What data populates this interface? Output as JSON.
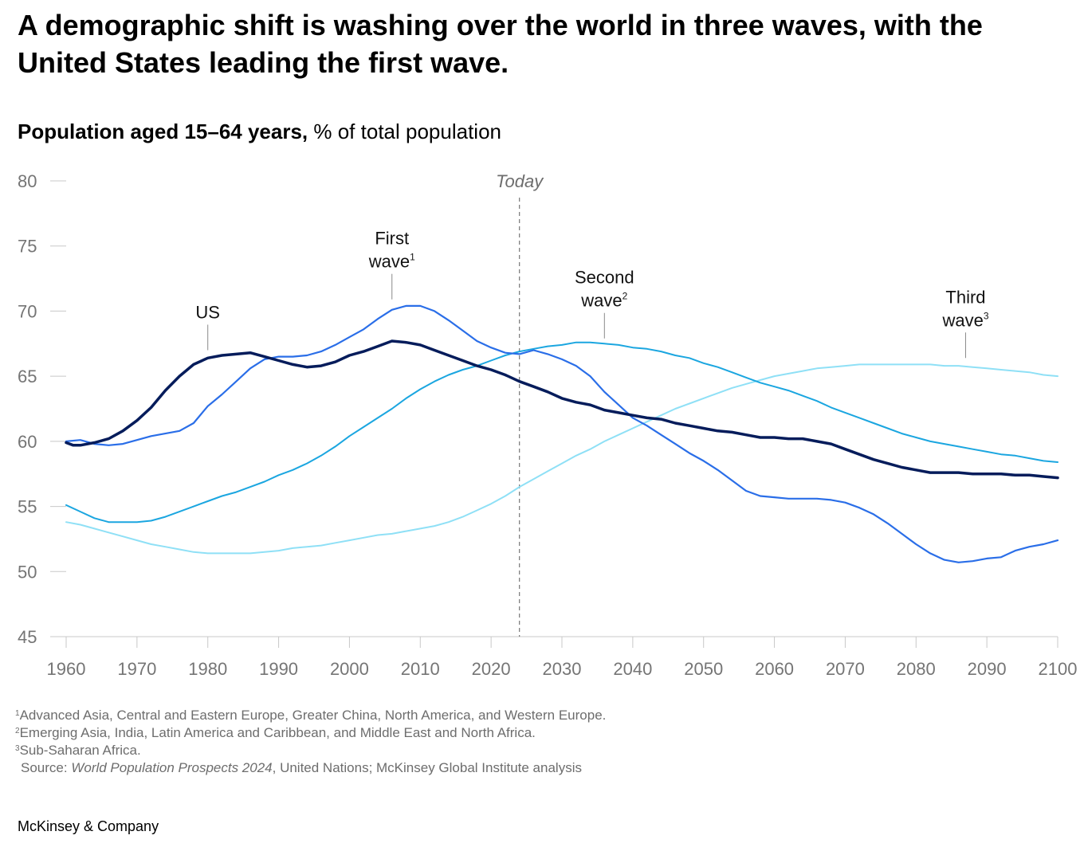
{
  "headline": "A demographic shift is washing over the world in three waves, with the United States leading the first wave.",
  "subtitle": {
    "bold": "Population aged 15–64 years,",
    "rest": " % of total population"
  },
  "footnotes": [
    {
      "sup": "1",
      "text": "Advanced Asia, Central and Eastern Europe, Greater China, North America, and Western Europe."
    },
    {
      "sup": "2",
      "text": "Emerging Asia, India, Latin America and Caribbean, and Middle East and North Africa."
    },
    {
      "sup": "3",
      "text": "Sub-Saharan Africa."
    }
  ],
  "source": {
    "prefix": "Source: ",
    "italic": "World Population Prospects 2024",
    "suffix": ", United Nations; McKinsey Global Institute analysis"
  },
  "brand": "McKinsey & Company",
  "chart_data": {
    "type": "line",
    "title": "Population aged 15–64 years, % of total population",
    "xlabel": "",
    "ylabel": "",
    "xlim": [
      1960,
      2100
    ],
    "ylim": [
      45,
      80
    ],
    "x_ticks": [
      1960,
      1970,
      1980,
      1990,
      2000,
      2010,
      2020,
      2030,
      2040,
      2050,
      2060,
      2070,
      2080,
      2090,
      2100
    ],
    "y_ticks": [
      45,
      50,
      55,
      60,
      65,
      70,
      75,
      80
    ],
    "grid": false,
    "today_marker": {
      "x": 2024,
      "label": "Today"
    },
    "series": [
      {
        "name": "US",
        "color": "#051c5b",
        "line_width": 3.5,
        "points": [
          [
            1960,
            59.9
          ],
          [
            1961,
            59.7
          ],
          [
            1962,
            59.7
          ],
          [
            1964,
            59.9
          ],
          [
            1966,
            60.2
          ],
          [
            1968,
            60.8
          ],
          [
            1970,
            61.6
          ],
          [
            1972,
            62.6
          ],
          [
            1974,
            63.9
          ],
          [
            1976,
            65.0
          ],
          [
            1978,
            65.9
          ],
          [
            1980,
            66.4
          ],
          [
            1982,
            66.6
          ],
          [
            1984,
            66.7
          ],
          [
            1986,
            66.8
          ],
          [
            1988,
            66.5
          ],
          [
            1990,
            66.2
          ],
          [
            1992,
            65.9
          ],
          [
            1994,
            65.7
          ],
          [
            1996,
            65.8
          ],
          [
            1998,
            66.1
          ],
          [
            2000,
            66.6
          ],
          [
            2002,
            66.9
          ],
          [
            2004,
            67.3
          ],
          [
            2006,
            67.7
          ],
          [
            2008,
            67.6
          ],
          [
            2010,
            67.4
          ],
          [
            2012,
            67.0
          ],
          [
            2014,
            66.6
          ],
          [
            2016,
            66.2
          ],
          [
            2018,
            65.8
          ],
          [
            2020,
            65.5
          ],
          [
            2022,
            65.1
          ],
          [
            2024,
            64.6
          ],
          [
            2026,
            64.2
          ],
          [
            2028,
            63.8
          ],
          [
            2030,
            63.3
          ],
          [
            2032,
            63.0
          ],
          [
            2034,
            62.8
          ],
          [
            2036,
            62.4
          ],
          [
            2038,
            62.2
          ],
          [
            2040,
            62.0
          ],
          [
            2042,
            61.8
          ],
          [
            2044,
            61.7
          ],
          [
            2046,
            61.4
          ],
          [
            2048,
            61.2
          ],
          [
            2050,
            61.0
          ],
          [
            2052,
            60.8
          ],
          [
            2054,
            60.7
          ],
          [
            2056,
            60.5
          ],
          [
            2058,
            60.3
          ],
          [
            2060,
            60.3
          ],
          [
            2062,
            60.2
          ],
          [
            2064,
            60.2
          ],
          [
            2066,
            60.0
          ],
          [
            2068,
            59.8
          ],
          [
            2070,
            59.4
          ],
          [
            2072,
            59.0
          ],
          [
            2074,
            58.6
          ],
          [
            2076,
            58.3
          ],
          [
            2078,
            58.0
          ],
          [
            2080,
            57.8
          ],
          [
            2082,
            57.6
          ],
          [
            2084,
            57.6
          ],
          [
            2086,
            57.6
          ],
          [
            2088,
            57.5
          ],
          [
            2090,
            57.5
          ],
          [
            2092,
            57.5
          ],
          [
            2094,
            57.4
          ],
          [
            2096,
            57.4
          ],
          [
            2098,
            57.3
          ],
          [
            2100,
            57.2
          ]
        ]
      },
      {
        "name": "First wave",
        "annotation": "First wave",
        "footnote": "1",
        "color": "#2a6ee8",
        "line_width": 2.2,
        "points": [
          [
            1960,
            60.0
          ],
          [
            1962,
            60.1
          ],
          [
            1964,
            59.8
          ],
          [
            1966,
            59.7
          ],
          [
            1968,
            59.8
          ],
          [
            1970,
            60.1
          ],
          [
            1972,
            60.4
          ],
          [
            1974,
            60.6
          ],
          [
            1976,
            60.8
          ],
          [
            1978,
            61.4
          ],
          [
            1980,
            62.7
          ],
          [
            1982,
            63.6
          ],
          [
            1984,
            64.6
          ],
          [
            1986,
            65.6
          ],
          [
            1988,
            66.3
          ],
          [
            1990,
            66.5
          ],
          [
            1992,
            66.5
          ],
          [
            1994,
            66.6
          ],
          [
            1996,
            66.9
          ],
          [
            1998,
            67.4
          ],
          [
            2000,
            68.0
          ],
          [
            2002,
            68.6
          ],
          [
            2004,
            69.4
          ],
          [
            2006,
            70.1
          ],
          [
            2008,
            70.4
          ],
          [
            2010,
            70.4
          ],
          [
            2012,
            70.0
          ],
          [
            2014,
            69.3
          ],
          [
            2016,
            68.5
          ],
          [
            2018,
            67.7
          ],
          [
            2020,
            67.2
          ],
          [
            2022,
            66.8
          ],
          [
            2024,
            66.7
          ],
          [
            2026,
            67.0
          ],
          [
            2028,
            66.7
          ],
          [
            2030,
            66.3
          ],
          [
            2032,
            65.8
          ],
          [
            2034,
            65.0
          ],
          [
            2036,
            63.8
          ],
          [
            2038,
            62.8
          ],
          [
            2040,
            61.8
          ],
          [
            2042,
            61.2
          ],
          [
            2044,
            60.5
          ],
          [
            2046,
            59.8
          ],
          [
            2048,
            59.1
          ],
          [
            2050,
            58.5
          ],
          [
            2052,
            57.8
          ],
          [
            2054,
            57.0
          ],
          [
            2056,
            56.2
          ],
          [
            2058,
            55.8
          ],
          [
            2060,
            55.7
          ],
          [
            2062,
            55.6
          ],
          [
            2064,
            55.6
          ],
          [
            2066,
            55.6
          ],
          [
            2068,
            55.5
          ],
          [
            2070,
            55.3
          ],
          [
            2072,
            54.9
          ],
          [
            2074,
            54.4
          ],
          [
            2076,
            53.7
          ],
          [
            2078,
            52.9
          ],
          [
            2080,
            52.1
          ],
          [
            2082,
            51.4
          ],
          [
            2084,
            50.9
          ],
          [
            2086,
            50.7
          ],
          [
            2088,
            50.8
          ],
          [
            2090,
            51.0
          ],
          [
            2092,
            51.1
          ],
          [
            2094,
            51.6
          ],
          [
            2096,
            51.9
          ],
          [
            2098,
            52.1
          ],
          [
            2100,
            52.4
          ]
        ]
      },
      {
        "name": "Second wave",
        "annotation": "Second wave",
        "footnote": "2",
        "color": "#1ba6e0",
        "line_width": 2.0,
        "points": [
          [
            1960,
            55.1
          ],
          [
            1962,
            54.6
          ],
          [
            1964,
            54.1
          ],
          [
            1966,
            53.8
          ],
          [
            1968,
            53.8
          ],
          [
            1970,
            53.8
          ],
          [
            1972,
            53.9
          ],
          [
            1974,
            54.2
          ],
          [
            1976,
            54.6
          ],
          [
            1978,
            55.0
          ],
          [
            1980,
            55.4
          ],
          [
            1982,
            55.8
          ],
          [
            1984,
            56.1
          ],
          [
            1986,
            56.5
          ],
          [
            1988,
            56.9
          ],
          [
            1990,
            57.4
          ],
          [
            1992,
            57.8
          ],
          [
            1994,
            58.3
          ],
          [
            1996,
            58.9
          ],
          [
            1998,
            59.6
          ],
          [
            2000,
            60.4
          ],
          [
            2002,
            61.1
          ],
          [
            2004,
            61.8
          ],
          [
            2006,
            62.5
          ],
          [
            2008,
            63.3
          ],
          [
            2010,
            64.0
          ],
          [
            2012,
            64.6
          ],
          [
            2014,
            65.1
          ],
          [
            2016,
            65.5
          ],
          [
            2018,
            65.8
          ],
          [
            2020,
            66.2
          ],
          [
            2022,
            66.6
          ],
          [
            2024,
            66.9
          ],
          [
            2026,
            67.1
          ],
          [
            2028,
            67.3
          ],
          [
            2030,
            67.4
          ],
          [
            2032,
            67.6
          ],
          [
            2034,
            67.6
          ],
          [
            2036,
            67.5
          ],
          [
            2038,
            67.4
          ],
          [
            2040,
            67.2
          ],
          [
            2042,
            67.1
          ],
          [
            2044,
            66.9
          ],
          [
            2046,
            66.6
          ],
          [
            2048,
            66.4
          ],
          [
            2050,
            66.0
          ],
          [
            2052,
            65.7
          ],
          [
            2054,
            65.3
          ],
          [
            2056,
            64.9
          ],
          [
            2058,
            64.5
          ],
          [
            2060,
            64.2
          ],
          [
            2062,
            63.9
          ],
          [
            2064,
            63.5
          ],
          [
            2066,
            63.1
          ],
          [
            2068,
            62.6
          ],
          [
            2070,
            62.2
          ],
          [
            2072,
            61.8
          ],
          [
            2074,
            61.4
          ],
          [
            2076,
            61.0
          ],
          [
            2078,
            60.6
          ],
          [
            2080,
            60.3
          ],
          [
            2082,
            60.0
          ],
          [
            2084,
            59.8
          ],
          [
            2086,
            59.6
          ],
          [
            2088,
            59.4
          ],
          [
            2090,
            59.2
          ],
          [
            2092,
            59.0
          ],
          [
            2094,
            58.9
          ],
          [
            2096,
            58.7
          ],
          [
            2098,
            58.5
          ],
          [
            2100,
            58.4
          ]
        ]
      },
      {
        "name": "Third wave",
        "annotation": "Third wave",
        "footnote": "3",
        "color": "#8fe0f6",
        "line_width": 2.0,
        "points": [
          [
            1960,
            53.8
          ],
          [
            1962,
            53.6
          ],
          [
            1964,
            53.3
          ],
          [
            1966,
            53.0
          ],
          [
            1968,
            52.7
          ],
          [
            1970,
            52.4
          ],
          [
            1972,
            52.1
          ],
          [
            1974,
            51.9
          ],
          [
            1976,
            51.7
          ],
          [
            1978,
            51.5
          ],
          [
            1980,
            51.4
          ],
          [
            1982,
            51.4
          ],
          [
            1984,
            51.4
          ],
          [
            1986,
            51.4
          ],
          [
            1988,
            51.5
          ],
          [
            1990,
            51.6
          ],
          [
            1992,
            51.8
          ],
          [
            1994,
            51.9
          ],
          [
            1996,
            52.0
          ],
          [
            1998,
            52.2
          ],
          [
            2000,
            52.4
          ],
          [
            2002,
            52.6
          ],
          [
            2004,
            52.8
          ],
          [
            2006,
            52.9
          ],
          [
            2008,
            53.1
          ],
          [
            2010,
            53.3
          ],
          [
            2012,
            53.5
          ],
          [
            2014,
            53.8
          ],
          [
            2016,
            54.2
          ],
          [
            2018,
            54.7
          ],
          [
            2020,
            55.2
          ],
          [
            2022,
            55.8
          ],
          [
            2024,
            56.5
          ],
          [
            2026,
            57.1
          ],
          [
            2028,
            57.7
          ],
          [
            2030,
            58.3
          ],
          [
            2032,
            58.9
          ],
          [
            2034,
            59.4
          ],
          [
            2036,
            60.0
          ],
          [
            2038,
            60.5
          ],
          [
            2040,
            61.0
          ],
          [
            2042,
            61.5
          ],
          [
            2044,
            62.0
          ],
          [
            2046,
            62.5
          ],
          [
            2048,
            62.9
          ],
          [
            2050,
            63.3
          ],
          [
            2052,
            63.7
          ],
          [
            2054,
            64.1
          ],
          [
            2056,
            64.4
          ],
          [
            2058,
            64.7
          ],
          [
            2060,
            65.0
          ],
          [
            2062,
            65.2
          ],
          [
            2064,
            65.4
          ],
          [
            2066,
            65.6
          ],
          [
            2068,
            65.7
          ],
          [
            2070,
            65.8
          ],
          [
            2072,
            65.9
          ],
          [
            2074,
            65.9
          ],
          [
            2076,
            65.9
          ],
          [
            2078,
            65.9
          ],
          [
            2080,
            65.9
          ],
          [
            2082,
            65.9
          ],
          [
            2084,
            65.8
          ],
          [
            2086,
            65.8
          ],
          [
            2088,
            65.7
          ],
          [
            2090,
            65.6
          ],
          [
            2092,
            65.5
          ],
          [
            2094,
            65.4
          ],
          [
            2096,
            65.3
          ],
          [
            2098,
            65.1
          ],
          [
            2100,
            65.0
          ]
        ]
      }
    ],
    "annotations": [
      {
        "id": "us",
        "lines": [
          "US"
        ],
        "sup": "",
        "x": 1980,
        "y": 67.0,
        "leader": true
      },
      {
        "id": "first-wave",
        "lines": [
          "First",
          "wave"
        ],
        "sup": "1",
        "x": 2006,
        "y": 70.9,
        "leader": true
      },
      {
        "id": "second-wave",
        "lines": [
          "Second",
          "wave"
        ],
        "sup": "2",
        "x": 2036,
        "y": 67.9,
        "leader": true
      },
      {
        "id": "third-wave",
        "lines": [
          "Third",
          "wave"
        ],
        "sup": "3",
        "x": 2087,
        "y": 66.4,
        "leader": true
      }
    ]
  }
}
